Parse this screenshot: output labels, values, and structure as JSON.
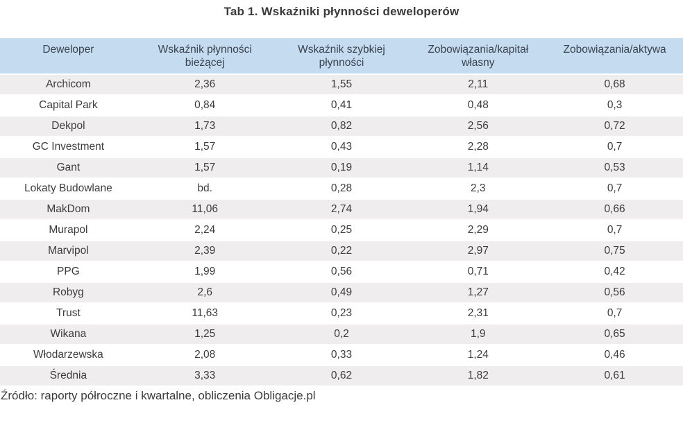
{
  "title": "Tab 1. Wskaźniki płynności deweloperów",
  "table": {
    "columns": [
      "Deweloper",
      "Wskaźnik płynności bieżącej",
      "Wskaźnik szybkiej płynności",
      "Zobowiązania/kapitał własny",
      "Zobowiązania/aktywa"
    ],
    "rows": [
      [
        "Archicom",
        "2,36",
        "1,55",
        "2,11",
        "0,68"
      ],
      [
        "Capital Park",
        "0,84",
        "0,41",
        "0,48",
        "0,3"
      ],
      [
        "Dekpol",
        "1,73",
        "0,82",
        "2,56",
        "0,72"
      ],
      [
        "GC Investment",
        "1,57",
        "0,43",
        "2,28",
        "0,7"
      ],
      [
        "Gant",
        "1,57",
        "0,19",
        "1,14",
        "0,53"
      ],
      [
        "Lokaty Budowlane",
        "bd.",
        "0,28",
        "2,3",
        "0,7"
      ],
      [
        "MakDom",
        "11,06",
        "2,74",
        "1,94",
        "0,66"
      ],
      [
        "Murapol",
        "2,24",
        "0,25",
        "2,29",
        "0,7"
      ],
      [
        "Marvipol",
        "2,39",
        "0,22",
        "2,97",
        "0,75"
      ],
      [
        "PPG",
        "1,99",
        "0,56",
        "0,71",
        "0,42"
      ],
      [
        "Robyg",
        "2,6",
        "0,49",
        "1,27",
        "0,56"
      ],
      [
        "Trust",
        "11,63",
        "0,23",
        "2,31",
        "0,7"
      ],
      [
        "Wikana",
        "1,25",
        "0,2",
        "1,9",
        "0,65"
      ],
      [
        "Włodarzewska",
        "2,08",
        "0,33",
        "1,24",
        "0,46"
      ],
      [
        "Średnia",
        "3,33",
        "0,62",
        "1,82",
        "0,61"
      ]
    ]
  },
  "source": "Źródło: raporty półroczne i kwartalne, obliczenia Obligacje.pl",
  "colors": {
    "header_bg": "#c5dcf0",
    "row_alt_bg": "#efedee",
    "row_bg": "#ffffff",
    "header_text": "#39424e",
    "body_text": "#3c3c3c"
  },
  "chart_data": {
    "type": "table",
    "title": "Tab 1. Wskaźniki płynności deweloperów",
    "columns": [
      "Deweloper",
      "Wskaźnik płynności bieżącej",
      "Wskaźnik szybkiej płynności",
      "Zobowiązania/kapitał własny",
      "Zobowiązania/aktywa"
    ],
    "rows": [
      [
        "Archicom",
        "2,36",
        "1,55",
        "2,11",
        "0,68"
      ],
      [
        "Capital Park",
        "0,84",
        "0,41",
        "0,48",
        "0,3"
      ],
      [
        "Dekpol",
        "1,73",
        "0,82",
        "2,56",
        "0,72"
      ],
      [
        "GC Investment",
        "1,57",
        "0,43",
        "2,28",
        "0,7"
      ],
      [
        "Gant",
        "1,57",
        "0,19",
        "1,14",
        "0,53"
      ],
      [
        "Lokaty Budowlane",
        "bd.",
        "0,28",
        "2,3",
        "0,7"
      ],
      [
        "MakDom",
        "11,06",
        "2,74",
        "1,94",
        "0,66"
      ],
      [
        "Murapol",
        "2,24",
        "0,25",
        "2,29",
        "0,7"
      ],
      [
        "Marvipol",
        "2,39",
        "0,22",
        "2,97",
        "0,75"
      ],
      [
        "PPG",
        "1,99",
        "0,56",
        "0,71",
        "0,42"
      ],
      [
        "Robyg",
        "2,6",
        "0,49",
        "1,27",
        "0,56"
      ],
      [
        "Trust",
        "11,63",
        "0,23",
        "2,31",
        "0,7"
      ],
      [
        "Wikana",
        "1,25",
        "0,2",
        "1,9",
        "0,65"
      ],
      [
        "Włodarzewska",
        "2,08",
        "0,33",
        "1,24",
        "0,46"
      ],
      [
        "Średnia",
        "3,33",
        "0,62",
        "1,82",
        "0,61"
      ]
    ],
    "source": "Źródło: raporty półroczne i kwartalne, obliczenia Obligacje.pl"
  }
}
